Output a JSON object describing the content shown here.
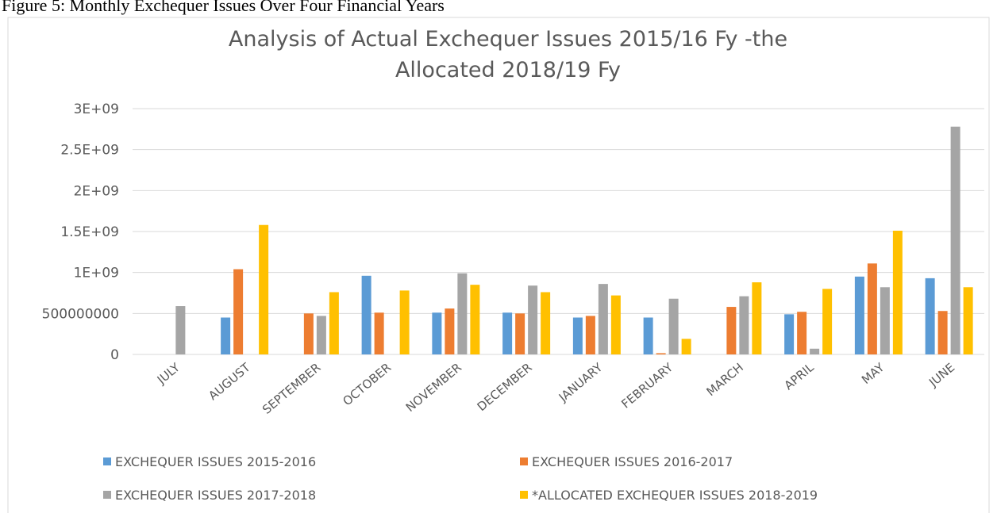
{
  "caption": "Figure 5: Monthly Exchequer Issues Over Four Financial Years",
  "chart_data": {
    "type": "bar",
    "title": [
      "Analysis of Actual Exchequer  Issues 2015/16 Fy -the",
      "Allocated 2018/19 Fy"
    ],
    "categories": [
      "JULY",
      "AUGUST",
      "SEPTEMBER",
      "OCTOBER",
      "NOVEMBER",
      "DECEMBER",
      "JANUARY",
      "FEBRUARY",
      "MARCH",
      "APRIL",
      "MAY",
      "JUNE"
    ],
    "series": [
      {
        "name": "EXCHEQUER ISSUES 2015-2016",
        "color": "#5b9bd5",
        "values": [
          null,
          450000000,
          null,
          960000000,
          510000000,
          510000000,
          450000000,
          450000000,
          null,
          490000000,
          950000000,
          930000000
        ]
      },
      {
        "name": "EXCHEQUER ISSUES 2016-2017",
        "color": "#ed7d31",
        "values": [
          null,
          1040000000,
          500000000,
          510000000,
          560000000,
          500000000,
          470000000,
          15000000,
          580000000,
          520000000,
          1110000000,
          530000000
        ]
      },
      {
        "name": "EXCHEQUER ISSUES 2017-2018",
        "color": "#a5a5a5",
        "values": [
          590000000,
          null,
          470000000,
          null,
          990000000,
          840000000,
          860000000,
          680000000,
          710000000,
          70000000,
          820000000,
          2780000000
        ]
      },
      {
        "name": "*ALLOCATED EXCHEQUER ISSUES 2018-2019",
        "color": "#ffc000",
        "values": [
          null,
          1580000000,
          760000000,
          780000000,
          850000000,
          760000000,
          720000000,
          190000000,
          880000000,
          800000000,
          1510000000,
          820000000
        ]
      }
    ],
    "ylim": [
      0,
      3000000000
    ],
    "yticks": [
      0,
      500000000,
      {
        "value": 1000000000,
        "label": "1E+09"
      },
      {
        "value": 1500000000,
        "label": "1.5E+09"
      },
      {
        "value": 2000000000,
        "label": "2E+09"
      },
      {
        "value": 2500000000,
        "label": "2.5E+09"
      },
      {
        "value": 3000000000,
        "label": "3E+09"
      }
    ],
    "grid": true,
    "legend": "bottom"
  }
}
